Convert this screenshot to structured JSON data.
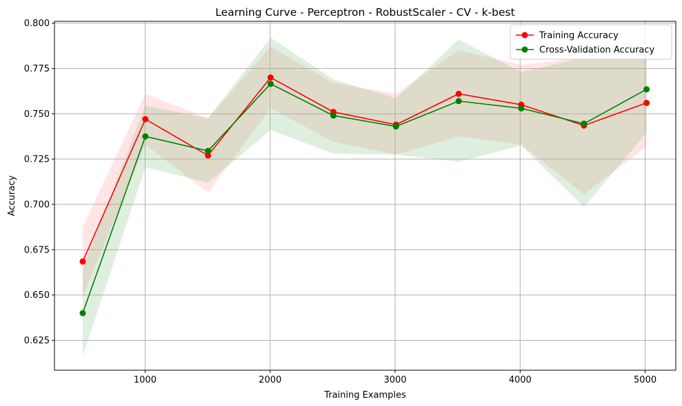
{
  "chart_data": {
    "type": "line",
    "title": "Learning Curve - Perceptron - RobustScaler - CV - k-best",
    "xlabel": "Training Examples",
    "ylabel": "Accuracy",
    "xlim": [
      275,
      5245
    ],
    "ylim": [
      0.6085,
      0.801
    ],
    "xticks": [
      1000,
      2000,
      3000,
      4000,
      5000
    ],
    "yticks": [
      0.625,
      0.65,
      0.675,
      0.7,
      0.725,
      0.75,
      0.775,
      0.8
    ],
    "xtick_labels": [
      "1000",
      "2000",
      "3000",
      "4000",
      "5000"
    ],
    "ytick_labels": [
      "0.625",
      "0.650",
      "0.675",
      "0.700",
      "0.725",
      "0.750",
      "0.775",
      "0.800"
    ],
    "grid": true,
    "legend_position": "top-right",
    "x": [
      501,
      1002,
      1503,
      2004,
      2506,
      3007,
      3508,
      4009,
      4510,
      5011
    ],
    "series": [
      {
        "name": "Training Accuracy",
        "color": "#ff0000",
        "band_color": "#ff9999",
        "values": [
          0.6685,
          0.747,
          0.727,
          0.77,
          0.751,
          0.744,
          0.761,
          0.755,
          0.7435,
          0.756
        ],
        "upper": [
          0.6875,
          0.761,
          0.7475,
          0.787,
          0.767,
          0.761,
          0.785,
          0.777,
          0.781,
          0.7805
        ],
        "lower": [
          0.649,
          0.733,
          0.7065,
          0.753,
          0.7345,
          0.7275,
          0.7375,
          0.733,
          0.7055,
          0.732
        ]
      },
      {
        "name": "Cross-Validation Accuracy",
        "color": "#008000",
        "band_color": "#80c080",
        "values": [
          0.64,
          0.7375,
          0.7295,
          0.7665,
          0.749,
          0.743,
          0.757,
          0.753,
          0.7445,
          0.7635
        ],
        "upper": [
          0.664,
          0.7545,
          0.7475,
          0.792,
          0.769,
          0.7585,
          0.791,
          0.773,
          0.781,
          0.781
        ],
        "lower": [
          0.6165,
          0.7205,
          0.712,
          0.741,
          0.728,
          0.7275,
          0.7235,
          0.7325,
          0.6985,
          0.7395
        ]
      }
    ]
  }
}
